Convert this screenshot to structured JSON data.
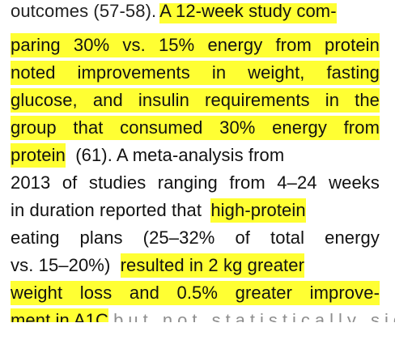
{
  "text": {
    "line1_partial": "outcomes (57-58).",
    "line1_highlight": "A 12-week study com-",
    "line2": "paring 30% vs. 15% energy from protein",
    "line3": "noted improvements in weight, fasting",
    "line4": "glucose, and insulin requirements in the",
    "line5": "group that consumed 30% energy from",
    "line6_highlight": "protein",
    "line6_rest": "(61). A meta-analysis from",
    "line7": "2013 of studies ranging from 4–24 weeks",
    "line8_plain": "in duration reported that",
    "line8_highlight": "high-protein",
    "line9": "eating plans (25–32% of total energy",
    "line10_plain": "vs. 15–20%)",
    "line10_highlight": "resulted in 2 kg greater",
    "line11": "weight loss and 0.5% greater improve-",
    "line12_highlight": "ment in A1C",
    "line12_faded": "but not statistically significant"
  },
  "colors": {
    "highlight": "#ffff33",
    "text": "#111111"
  }
}
